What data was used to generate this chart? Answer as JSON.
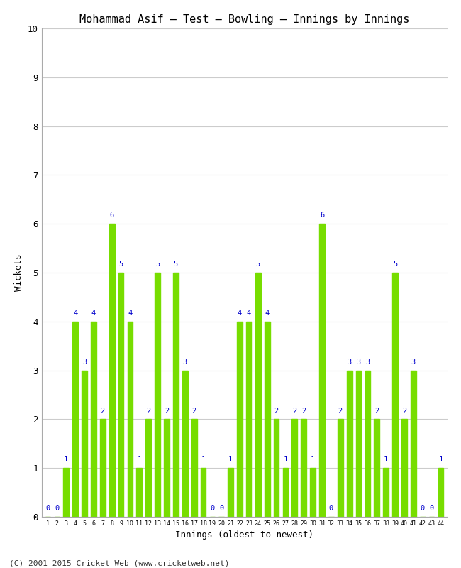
{
  "title": "Mohammad Asif – Test – Bowling – Innings by Innings",
  "xlabel": "Innings (oldest to newest)",
  "ylabel": "Wickets",
  "bar_color": "#77dd00",
  "label_color": "#0000cc",
  "background_color": "#ffffff",
  "grid_color": "#cccccc",
  "ylim": [
    0,
    10
  ],
  "yticks": [
    0,
    1,
    2,
    3,
    4,
    5,
    6,
    7,
    8,
    9,
    10
  ],
  "footer": "(C) 2001-2015 Cricket Web (www.cricketweb.net)",
  "innings": [
    1,
    2,
    3,
    4,
    5,
    6,
    7,
    8,
    9,
    10,
    11,
    12,
    13,
    14,
    15,
    16,
    17,
    18,
    19,
    20,
    21,
    22,
    23,
    24,
    25,
    26,
    27,
    28,
    29,
    30,
    31,
    32,
    33,
    34,
    35,
    36,
    37,
    38,
    39,
    40,
    41,
    42,
    43,
    44
  ],
  "wickets": [
    0,
    0,
    1,
    4,
    3,
    4,
    2,
    6,
    5,
    4,
    1,
    2,
    5,
    2,
    5,
    3,
    2,
    1,
    0,
    0,
    1,
    4,
    4,
    5,
    4,
    2,
    1,
    2,
    2,
    1,
    6,
    0,
    2,
    3,
    3,
    3,
    2,
    1,
    5,
    2,
    3,
    0,
    0,
    1
  ]
}
